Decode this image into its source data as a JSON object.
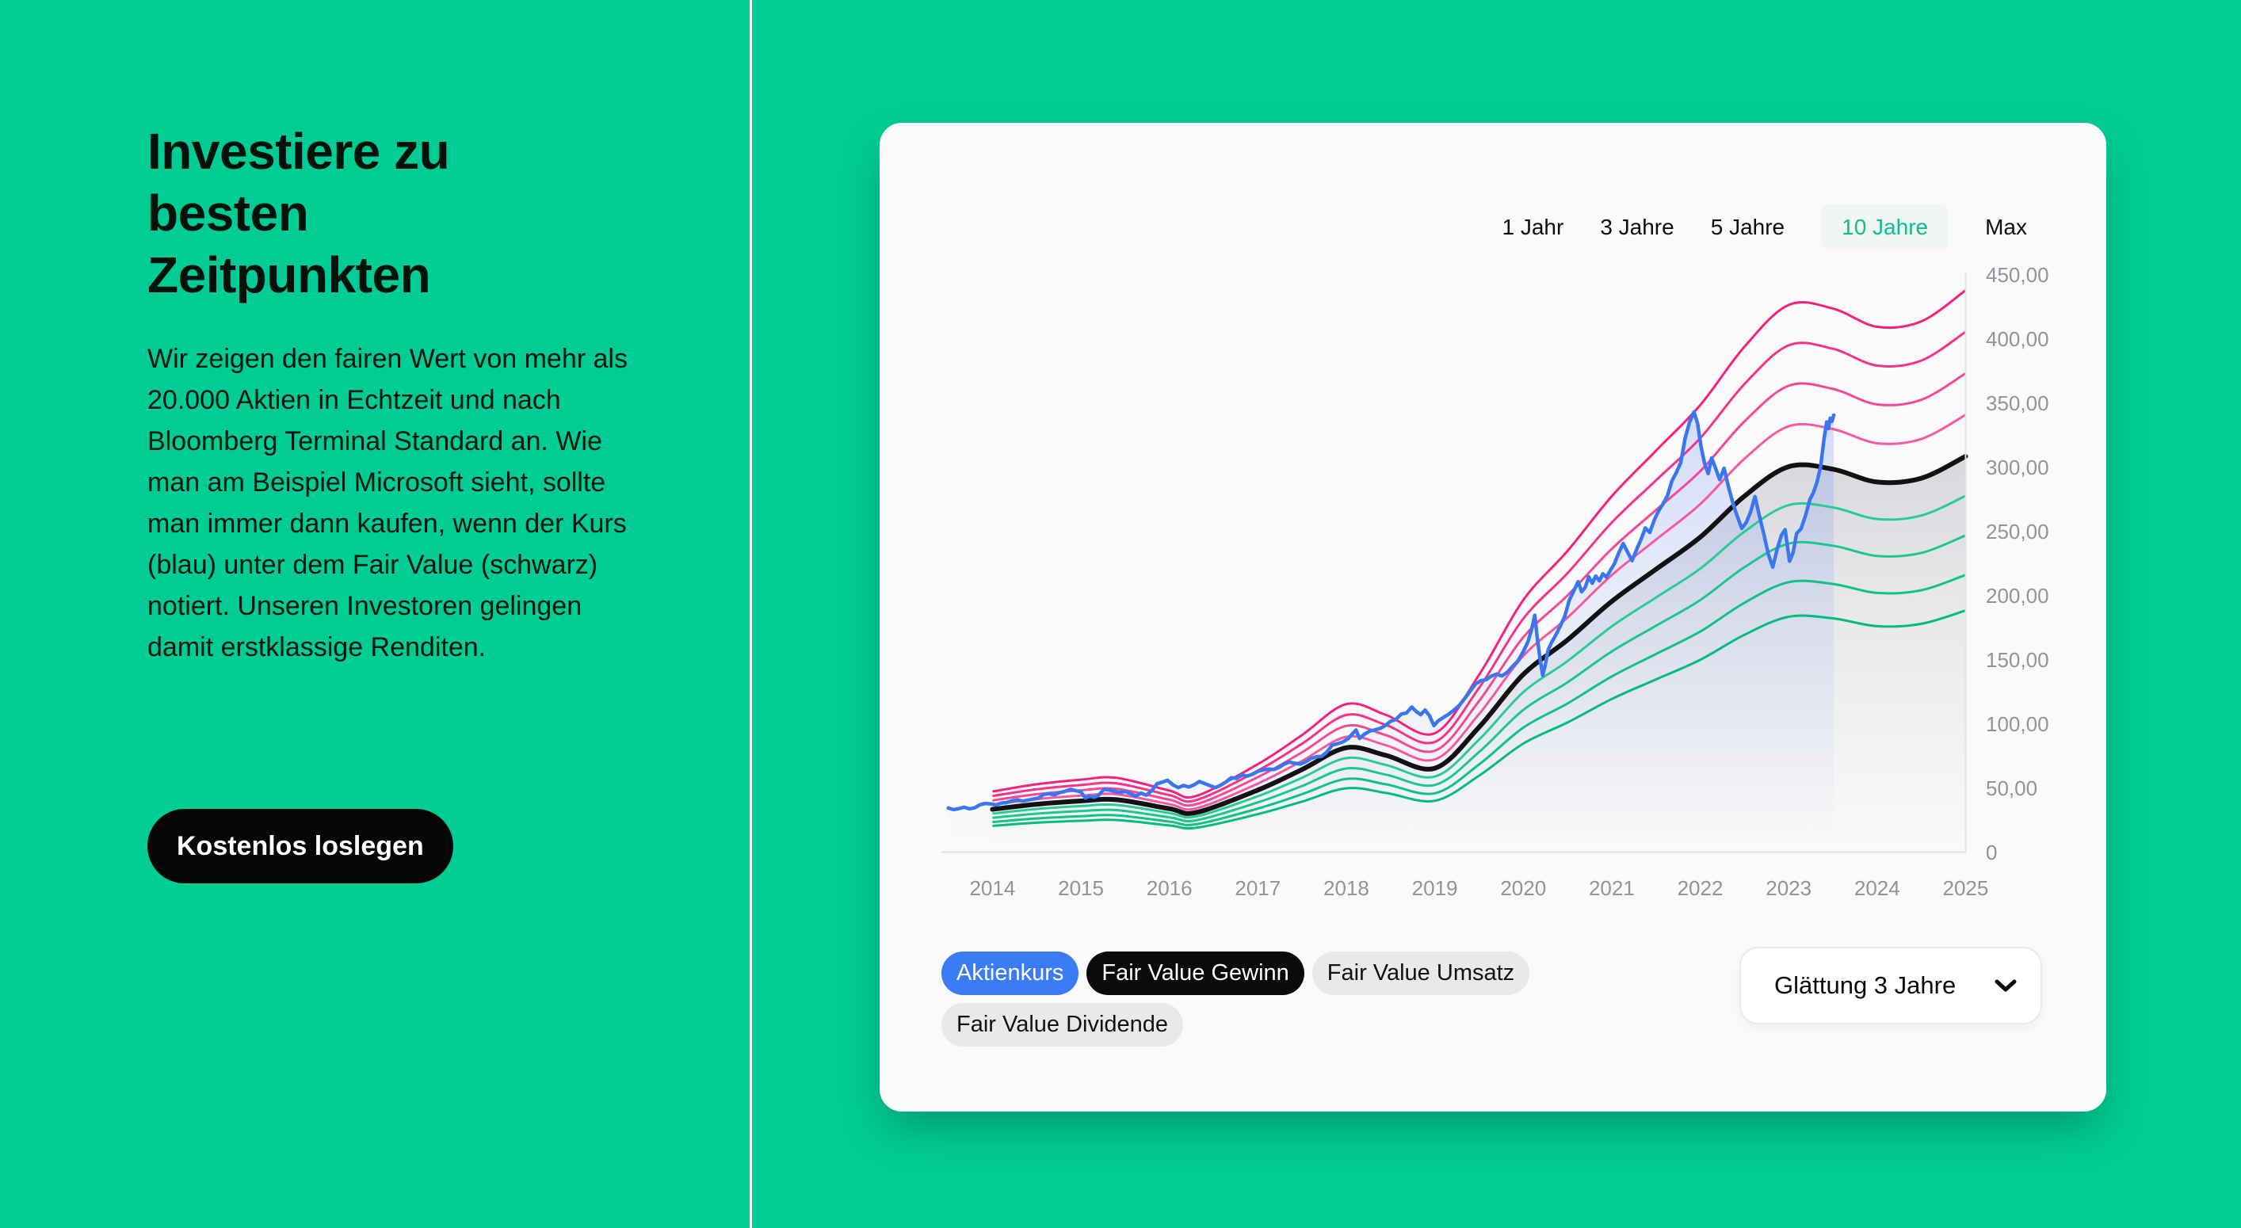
{
  "page": {
    "background_color": "#00CC94"
  },
  "left_panel": {
    "heading": "Investiere zu besten Zeitpunkten",
    "paragraph": "Wir zeigen den fairen Wert von mehr als 20.000 Aktien in Echtzeit und nach Bloomberg Terminal Standard an. Wie man am Beispiel Microsoft sieht, sollte man immer dann kaufen, wenn der Kurs (blau) unter dem Fair Value (schwarz) notiert. Unseren Investoren gelingen damit erstklassige Renditen.",
    "cta_label": "Kostenlos loslegen"
  },
  "card": {
    "tabs": [
      {
        "label": "1 Jahr",
        "active": false
      },
      {
        "label": "3 Jahre",
        "active": false
      },
      {
        "label": "5 Jahre",
        "active": false
      },
      {
        "label": "10 Jahre",
        "active": true
      },
      {
        "label": "Max",
        "active": false
      }
    ],
    "active_tab_color": "#0CBE8C",
    "legend": [
      {
        "label": "Aktienkurs",
        "variant": "blue"
      },
      {
        "label": "Fair Value Gewinn",
        "variant": "black"
      },
      {
        "label": "Fair Value Umsatz",
        "variant": "gray"
      },
      {
        "label": "Fair Value Dividende",
        "variant": "gray"
      }
    ],
    "smoothing_dropdown": {
      "label": "Glättung 3 Jahre"
    }
  },
  "chart_data": {
    "type": "line",
    "title": "",
    "xlabel": "",
    "ylabel": "",
    "x_domain": [
      2013.5,
      2025
    ],
    "y_domain": [
      0,
      450
    ],
    "grid": false,
    "legend_position": "bottom-left",
    "x_ticks": [
      {
        "value": 2014,
        "label": "2014"
      },
      {
        "value": 2015,
        "label": "2015"
      },
      {
        "value": 2016,
        "label": "2016"
      },
      {
        "value": 2017,
        "label": "2017"
      },
      {
        "value": 2018,
        "label": "2018"
      },
      {
        "value": 2019,
        "label": "2019"
      },
      {
        "value": 2020,
        "label": "2020"
      },
      {
        "value": 2021,
        "label": "2021"
      },
      {
        "value": 2022,
        "label": "2022"
      },
      {
        "value": 2023,
        "label": "2023"
      },
      {
        "value": 2024,
        "label": "2024"
      },
      {
        "value": 2025,
        "label": "2025"
      }
    ],
    "y_ticks": [
      {
        "value": 0,
        "label": "0"
      },
      {
        "value": 50,
        "label": "50,00"
      },
      {
        "value": 100,
        "label": "100,00"
      },
      {
        "value": 150,
        "label": "150,00"
      },
      {
        "value": 200,
        "label": "200,00"
      },
      {
        "value": 250,
        "label": "250,00"
      },
      {
        "value": 300,
        "label": "300,00"
      },
      {
        "value": 350,
        "label": "350,00"
      },
      {
        "value": 400,
        "label": "400,00"
      },
      {
        "value": 450,
        "label": "450,00"
      }
    ],
    "colors": {
      "price": "#3B76F1",
      "fair_value": "#121214",
      "bands_above": [
        "#F7599E",
        "#F64893",
        "#F53488",
        "#F4217D"
      ],
      "bands_below": [
        "#29CC96",
        "#1CC78E",
        "#10C287",
        "#05BC7E"
      ],
      "axis": "#E0E1E2",
      "tick_text": "#90959B"
    },
    "band_multipliers_above": [
      1.105,
      1.21,
      1.315,
      1.42
    ],
    "band_multipliers_below": [
      0.9,
      0.8,
      0.7,
      0.61
    ],
    "series": [
      {
        "name": "Fair Value Gewinn",
        "style": "smooth",
        "points": [
          [
            2014,
            33
          ],
          [
            2014.5,
            37
          ],
          [
            2015,
            39.5
          ],
          [
            2015.4,
            40.5
          ],
          [
            2016,
            33.5
          ],
          [
            2016.3,
            30.5
          ],
          [
            2017,
            48
          ],
          [
            2017.5,
            64
          ],
          [
            2018,
            81
          ],
          [
            2018.45,
            75
          ],
          [
            2019,
            65
          ],
          [
            2019.5,
            97
          ],
          [
            2020,
            138
          ],
          [
            2020.5,
            165
          ],
          [
            2021,
            195
          ],
          [
            2021.5,
            220
          ],
          [
            2022,
            245
          ],
          [
            2022.5,
            277
          ],
          [
            2023,
            300
          ],
          [
            2023.5,
            298
          ],
          [
            2024,
            288
          ],
          [
            2024.5,
            291
          ],
          [
            2025,
            308
          ]
        ]
      },
      {
        "name": "Aktienkurs",
        "style": "jagged",
        "points": [
          [
            2013.5,
            34
          ],
          [
            2013.56,
            32.8
          ],
          [
            2013.62,
            33.6
          ],
          [
            2013.68,
            34.6
          ],
          [
            2013.74,
            33.4
          ],
          [
            2013.8,
            34.2
          ],
          [
            2013.86,
            36.6
          ],
          [
            2013.92,
            37.6
          ],
          [
            2013.98,
            37.2
          ],
          [
            2014.04,
            36.4
          ],
          [
            2014.1,
            37.9
          ],
          [
            2014.16,
            38.3
          ],
          [
            2014.22,
            39.6
          ],
          [
            2014.28,
            40.4
          ],
          [
            2014.34,
            39.4
          ],
          [
            2014.4,
            40.2
          ],
          [
            2014.46,
            41
          ],
          [
            2014.52,
            41.8
          ],
          [
            2014.58,
            44.6
          ],
          [
            2014.64,
            45.2
          ],
          [
            2014.7,
            44.3
          ],
          [
            2014.76,
            46.1
          ],
          [
            2014.82,
            47
          ],
          [
            2014.88,
            48.6
          ],
          [
            2014.94,
            47.6
          ],
          [
            2015,
            46.6
          ],
          [
            2015.05,
            41.8
          ],
          [
            2015.1,
            43.4
          ],
          [
            2015.15,
            42.4
          ],
          [
            2015.2,
            44
          ],
          [
            2015.26,
            48.6
          ],
          [
            2015.32,
            48
          ],
          [
            2015.38,
            47
          ],
          [
            2015.44,
            46.2
          ],
          [
            2015.5,
            46.9
          ],
          [
            2015.56,
            45.3
          ],
          [
            2015.62,
            43.3
          ],
          [
            2015.68,
            45.6
          ],
          [
            2015.74,
            44
          ],
          [
            2015.8,
            47.5
          ],
          [
            2015.86,
            52.9
          ],
          [
            2015.92,
            54.2
          ],
          [
            2015.98,
            55.6
          ],
          [
            2016.04,
            52.1
          ],
          [
            2016.1,
            49.9
          ],
          [
            2016.16,
            51.6
          ],
          [
            2016.22,
            50.4
          ],
          [
            2016.28,
            52.1
          ],
          [
            2016.34,
            54.7
          ],
          [
            2016.4,
            53
          ],
          [
            2016.46,
            51.4
          ],
          [
            2016.52,
            49.9
          ],
          [
            2016.58,
            51.8
          ],
          [
            2016.64,
            54.3
          ],
          [
            2016.7,
            57.6
          ],
          [
            2016.76,
            57.1
          ],
          [
            2016.82,
            59.7
          ],
          [
            2016.88,
            58.9
          ],
          [
            2016.94,
            60.3
          ],
          [
            2017,
            62.6
          ],
          [
            2017.06,
            63.7
          ],
          [
            2017.12,
            64.4
          ],
          [
            2017.18,
            64
          ],
          [
            2017.24,
            65.6
          ],
          [
            2017.3,
            68.4
          ],
          [
            2017.36,
            69.8
          ],
          [
            2017.42,
            68.9
          ],
          [
            2017.48,
            68.2
          ],
          [
            2017.54,
            70
          ],
          [
            2017.6,
            72.6
          ],
          [
            2017.66,
            73.9
          ],
          [
            2017.72,
            74.3
          ],
          [
            2017.78,
            77.6
          ],
          [
            2017.84,
            83
          ],
          [
            2017.9,
            84.1
          ],
          [
            2017.96,
            85.5
          ],
          [
            2018.02,
            88
          ],
          [
            2018.07,
            92
          ],
          [
            2018.11,
            94.8
          ],
          [
            2018.15,
            88.2
          ],
          [
            2018.2,
            91.3
          ],
          [
            2018.26,
            93.8
          ],
          [
            2018.32,
            94.9
          ],
          [
            2018.38,
            96
          ],
          [
            2018.44,
            98.3
          ],
          [
            2018.5,
            101.6
          ],
          [
            2018.56,
            103
          ],
          [
            2018.62,
            107.2
          ],
          [
            2018.68,
            108.1
          ],
          [
            2018.74,
            112.7
          ],
          [
            2018.79,
            109.2
          ],
          [
            2018.84,
            106.7
          ],
          [
            2018.89,
            110.3
          ],
          [
            2018.94,
            106
          ],
          [
            2018.99,
            98.2
          ],
          [
            2019.04,
            102.1
          ],
          [
            2019.1,
            104.7
          ],
          [
            2019.16,
            107.3
          ],
          [
            2019.22,
            110.5
          ],
          [
            2019.28,
            114.2
          ],
          [
            2019.34,
            119.5
          ],
          [
            2019.4,
            125.1
          ],
          [
            2019.46,
            130.6
          ],
          [
            2019.52,
            133.2
          ],
          [
            2019.58,
            134
          ],
          [
            2019.64,
            136.8
          ],
          [
            2019.7,
            138.4
          ],
          [
            2019.76,
            136.9
          ],
          [
            2019.82,
            139.8
          ],
          [
            2019.88,
            144.3
          ],
          [
            2019.94,
            148.6
          ],
          [
            2020,
            155.8
          ],
          [
            2020.05,
            163
          ],
          [
            2020.09,
            172
          ],
          [
            2020.13,
            184.2
          ],
          [
            2020.16,
            166
          ],
          [
            2020.19,
            150
          ],
          [
            2020.22,
            137.4
          ],
          [
            2020.25,
            146
          ],
          [
            2020.28,
            157
          ],
          [
            2020.32,
            163
          ],
          [
            2020.37,
            169
          ],
          [
            2020.42,
            176
          ],
          [
            2020.47,
            183.5
          ],
          [
            2020.52,
            195.9
          ],
          [
            2020.57,
            203
          ],
          [
            2020.62,
            210.4
          ],
          [
            2020.66,
            202.5
          ],
          [
            2020.7,
            205.8
          ],
          [
            2020.74,
            214.2
          ],
          [
            2020.78,
            209.1
          ],
          [
            2020.82,
            214.8
          ],
          [
            2020.86,
            211
          ],
          [
            2020.9,
            216.5
          ],
          [
            2020.94,
            213.9
          ],
          [
            2020.98,
            218.6
          ],
          [
            2021.03,
            224.3
          ],
          [
            2021.08,
            232.9
          ],
          [
            2021.13,
            240.1
          ],
          [
            2021.18,
            233.3
          ],
          [
            2021.23,
            226.7
          ],
          [
            2021.28,
            235.2
          ],
          [
            2021.33,
            243.1
          ],
          [
            2021.38,
            252.2
          ],
          [
            2021.43,
            248.7
          ],
          [
            2021.48,
            258.3
          ],
          [
            2021.53,
            265.5
          ],
          [
            2021.58,
            270.9
          ],
          [
            2021.63,
            277.3
          ],
          [
            2021.68,
            288.8
          ],
          [
            2021.73,
            295.4
          ],
          [
            2021.78,
            303.2
          ],
          [
            2021.83,
            322
          ],
          [
            2021.88,
            334.7
          ],
          [
            2021.93,
            342.5
          ],
          [
            2021.97,
            333.8
          ],
          [
            2022.01,
            315.6
          ],
          [
            2022.05,
            302.4
          ],
          [
            2022.09,
            294.6
          ],
          [
            2022.13,
            306.8
          ],
          [
            2022.17,
            299.5
          ],
          [
            2022.22,
            289.9
          ],
          [
            2022.27,
            298.7
          ],
          [
            2022.32,
            284.3
          ],
          [
            2022.37,
            271.6
          ],
          [
            2022.42,
            261.2
          ],
          [
            2022.47,
            251.9
          ],
          [
            2022.52,
            256.4
          ],
          [
            2022.57,
            264.8
          ],
          [
            2022.62,
            276.7
          ],
          [
            2022.67,
            261.5
          ],
          [
            2022.72,
            247.3
          ],
          [
            2022.77,
            231.8
          ],
          [
            2022.82,
            221.7
          ],
          [
            2022.87,
            235.6
          ],
          [
            2022.92,
            246.8
          ],
          [
            2022.96,
            250.9
          ],
          [
            2023.01,
            226.3
          ],
          [
            2023.05,
            232.7
          ],
          [
            2023.09,
            247.9
          ],
          [
            2023.14,
            251.6
          ],
          [
            2023.19,
            261.8
          ],
          [
            2023.24,
            274.5
          ],
          [
            2023.28,
            279.7
          ],
          [
            2023.32,
            287.9
          ],
          [
            2023.36,
            299.6
          ],
          [
            2023.4,
            321.5
          ],
          [
            2023.43,
            334.8
          ],
          [
            2023.45,
            329.6
          ],
          [
            2023.47,
            337.8
          ],
          [
            2023.49,
            335.4
          ],
          [
            2023.51,
            340.2
          ]
        ]
      }
    ]
  }
}
